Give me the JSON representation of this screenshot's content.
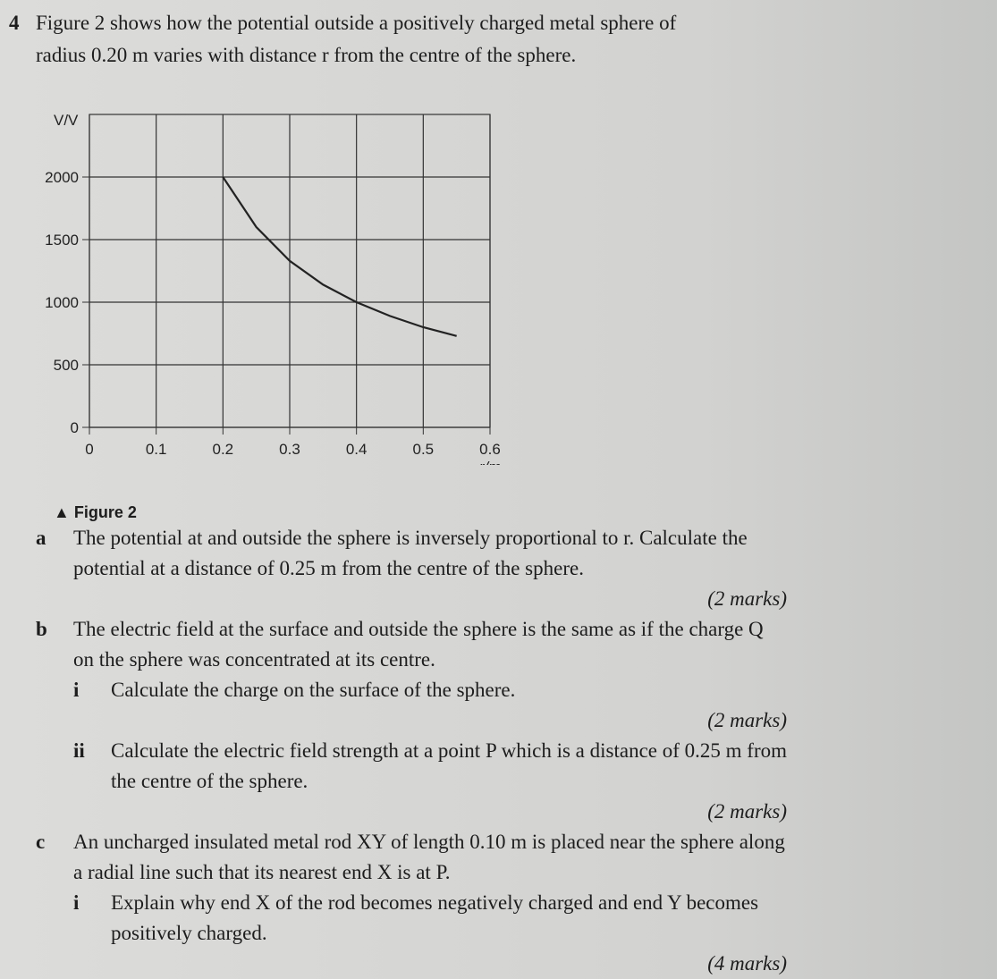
{
  "question_number": "4",
  "intro": "Figure 2 shows how the potential outside a positively charged metal sphere of radius 0.20 m varies with distance r from the centre of the sphere.",
  "chart_data": {
    "type": "line",
    "ylabel": "V/V",
    "xlabel": "r/m",
    "x": [
      0.2,
      0.25,
      0.3,
      0.35,
      0.4,
      0.45,
      0.5,
      0.55
    ],
    "values": [
      2000,
      1600,
      1330,
      1140,
      1000,
      890,
      800,
      730
    ],
    "color": "#222222",
    "xlim": [
      0,
      0.6
    ],
    "ylim": [
      0,
      2500
    ],
    "xticks": [
      0,
      0.1,
      0.2,
      0.3,
      0.4,
      0.5,
      0.6
    ],
    "yticks": [
      0,
      500,
      1000,
      1500,
      2000
    ],
    "grid": true
  },
  "figure_caption": "Figure 2",
  "parts": [
    {
      "label": "a",
      "text": "The potential at and outside the sphere is inversely proportional to r. Calculate the potential at a distance of 0.25 m from the centre of the sphere.",
      "marks": "(2 marks)"
    },
    {
      "label": "b",
      "text": "The electric field at the surface and outside the sphere is the same as if the charge Q on the sphere was concentrated at its centre.",
      "subparts": [
        {
          "label": "i",
          "text": "Calculate the charge on the surface of the sphere.",
          "marks": "(2 marks)"
        },
        {
          "label": "ii",
          "text": "Calculate the electric field strength at a point P which is a distance of 0.25 m from the centre of the sphere.",
          "marks": "(2 marks)"
        }
      ]
    },
    {
      "label": "c",
      "text": "An uncharged insulated metal rod XY of length 0.10 m is placed near the sphere along a radial line such that its nearest end X is at P.",
      "subparts": [
        {
          "label": "i",
          "text": "Explain why end X of the rod becomes negatively charged and end Y becomes positively charged.",
          "marks": "(4 marks)"
        }
      ]
    }
  ]
}
